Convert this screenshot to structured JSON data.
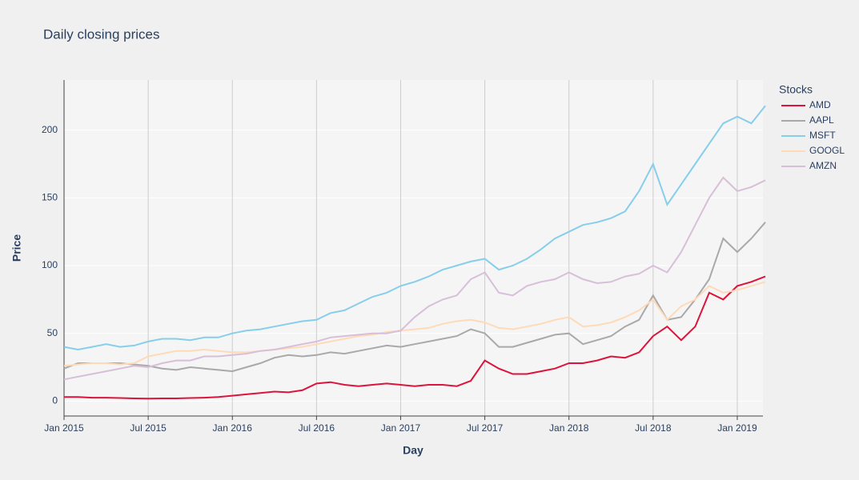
{
  "chart_data": {
    "type": "line",
    "title": "Daily closing prices",
    "x_label": "Day",
    "y_label": "Price",
    "legend_title": "Stocks",
    "legend": "right",
    "grid": true,
    "x": [
      "2015-01",
      "2015-02",
      "2015-03",
      "2015-04",
      "2015-05",
      "2015-06",
      "2015-07",
      "2015-08",
      "2015-09",
      "2015-10",
      "2015-11",
      "2015-12",
      "2016-01",
      "2016-02",
      "2016-03",
      "2016-04",
      "2016-05",
      "2016-06",
      "2016-07",
      "2016-08",
      "2016-09",
      "2016-10",
      "2016-11",
      "2016-12",
      "2017-01",
      "2017-02",
      "2017-03",
      "2017-04",
      "2017-05",
      "2017-06",
      "2017-07",
      "2017-08",
      "2017-09",
      "2017-10",
      "2017-11",
      "2017-12",
      "2018-01",
      "2018-02",
      "2018-03",
      "2018-04",
      "2018-05",
      "2018-06",
      "2018-07",
      "2018-08",
      "2018-09",
      "2018-10",
      "2018-11",
      "2018-12",
      "2019-01",
      "2019-02",
      "2019-03"
    ],
    "xlim": [
      "2015-01",
      "2019-03"
    ],
    "xticks": [
      {
        "value": "2015-01",
        "label": "Jan 2015"
      },
      {
        "value": "2015-07",
        "label": "Jul 2015"
      },
      {
        "value": "2016-01",
        "label": "Jan 2016"
      },
      {
        "value": "2016-07",
        "label": "Jul 2016"
      },
      {
        "value": "2017-01",
        "label": "Jan 2017"
      },
      {
        "value": "2017-07",
        "label": "Jul 2017"
      },
      {
        "value": "2018-01",
        "label": "Jan 2018"
      },
      {
        "value": "2018-07",
        "label": "Jul 2018"
      },
      {
        "value": "2019-01",
        "label": "Jan 2019"
      }
    ],
    "ylim": [
      -11,
      237
    ],
    "yticks": [
      0,
      50,
      100,
      150,
      200
    ],
    "series": [
      {
        "name": "AMD",
        "color": "#dc143c",
        "values": [
          3,
          3,
          2.5,
          2.5,
          2.3,
          2,
          1.8,
          2,
          2,
          2.3,
          2.5,
          3,
          4,
          5,
          6,
          7,
          6.5,
          8,
          13,
          14,
          12,
          11,
          12,
          13,
          12,
          11,
          12,
          12,
          11,
          15,
          30,
          24,
          20,
          20,
          22,
          24,
          28,
          28,
          30,
          33,
          32,
          36,
          48,
          55,
          45,
          55,
          80,
          75,
          85,
          88,
          92
        ]
      },
      {
        "name": "AAPL",
        "color": "#a9a9a9",
        "values": [
          24,
          28,
          28,
          28,
          28,
          27,
          26,
          24,
          23,
          25,
          24,
          23,
          22,
          25,
          28,
          32,
          34,
          33,
          34,
          36,
          35,
          37,
          39,
          41,
          40,
          42,
          44,
          46,
          48,
          53,
          50,
          40,
          40,
          43,
          46,
          49,
          50,
          42,
          45,
          48,
          55,
          60,
          78,
          60,
          62,
          75,
          90,
          120,
          110,
          120,
          132
        ]
      },
      {
        "name": "MSFT",
        "color": "#87ceeb",
        "values": [
          40,
          38,
          40,
          42,
          40,
          41,
          44,
          46,
          46,
          45,
          47,
          47,
          50,
          52,
          53,
          55,
          57,
          59,
          60,
          65,
          67,
          72,
          77,
          80,
          85,
          88,
          92,
          97,
          100,
          103,
          105,
          97,
          100,
          105,
          112,
          120,
          125,
          130,
          132,
          135,
          140,
          155,
          175,
          145,
          160,
          175,
          190,
          205,
          210,
          205,
          218
        ]
      },
      {
        "name": "GOOGL",
        "color": "#ffdab9",
        "values": [
          26,
          27,
          28,
          28,
          27,
          28,
          33,
          35,
          37,
          37,
          38,
          37,
          36,
          36,
          37,
          38,
          39,
          40,
          42,
          44,
          46,
          48,
          49,
          51,
          52,
          53,
          54,
          57,
          59,
          60,
          58,
          54,
          53,
          55,
          57,
          60,
          62,
          55,
          56,
          58,
          62,
          67,
          75,
          60,
          70,
          75,
          85,
          80,
          82,
          85,
          88
        ]
      },
      {
        "name": "AMZN",
        "color": "#d8bfd8",
        "values": [
          16,
          18,
          20,
          22,
          24,
          26,
          25,
          28,
          30,
          30,
          33,
          33,
          34,
          35,
          37,
          38,
          40,
          42,
          44,
          47,
          48,
          49,
          50,
          50,
          52,
          62,
          70,
          75,
          78,
          90,
          95,
          80,
          78,
          85,
          88,
          90,
          95,
          90,
          87,
          88,
          92,
          94,
          100,
          95,
          110,
          130,
          150,
          165,
          155,
          158,
          163
        ]
      }
    ]
  }
}
